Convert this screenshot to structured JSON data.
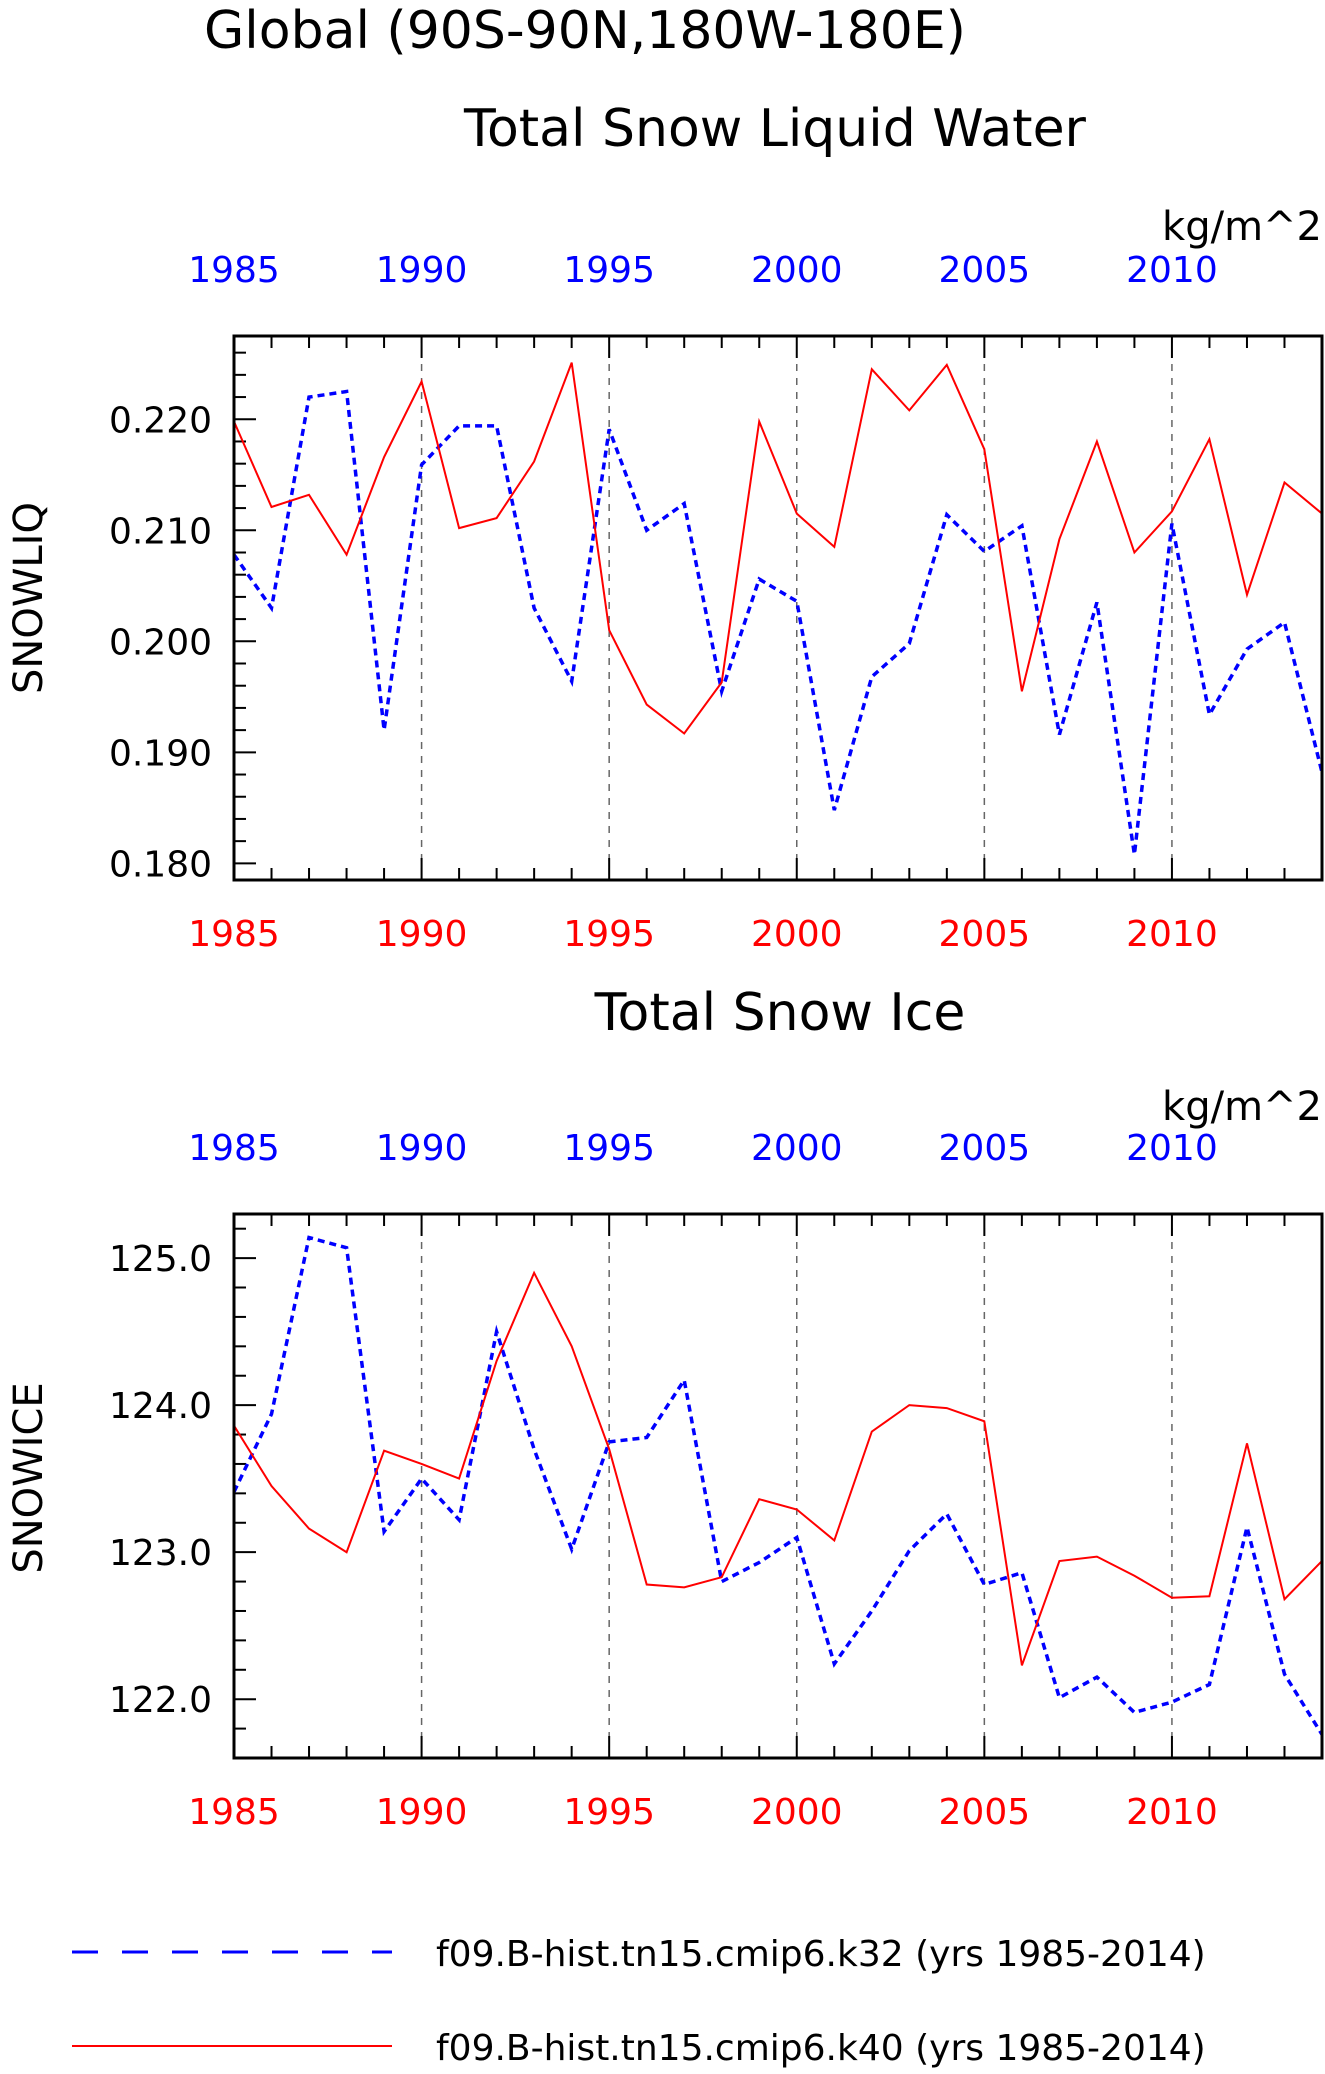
{
  "header": {
    "title_line1": "Global (90S-90N,180W-180E)"
  },
  "legend": {
    "items": [
      {
        "label": "f09.B-hist.tn15.cmip6.k32 (yrs 1985-2014)",
        "color": "#0000ff",
        "style": "dashed"
      },
      {
        "label": "f09.B-hist.tn15.cmip6.k40 (yrs 1985-2014)",
        "color": "#ff0000",
        "style": "solid"
      }
    ]
  },
  "chart_data": [
    {
      "type": "line",
      "title": "Total Snow Liquid Water",
      "units": "kg/m^2",
      "ylabel": "SNOWLIQ",
      "xlim": [
        1985,
        2014
      ],
      "ylim": [
        0.1785,
        0.2275
      ],
      "yticks": [
        "0.180",
        "0.190",
        "0.200",
        "0.210",
        "0.220"
      ],
      "ytick_values": [
        0.18,
        0.19,
        0.2,
        0.21,
        0.22
      ],
      "xticks": [
        "1985",
        "1990",
        "1995",
        "2000",
        "2005",
        "2010"
      ],
      "xtick_values": [
        1985,
        1990,
        1995,
        2000,
        2005,
        2010
      ],
      "top_axis_color": "#0000ff",
      "bottom_axis_color": "#ff0000",
      "grid": "vertical dashed at major x ticks",
      "x": [
        1985,
        1986,
        1987,
        1988,
        1989,
        1990,
        1991,
        1992,
        1993,
        1994,
        1995,
        1996,
        1997,
        1998,
        1999,
        2000,
        2001,
        2002,
        2003,
        2004,
        2005,
        2006,
        2007,
        2008,
        2009,
        2010,
        2011,
        2012,
        2013,
        2014
      ],
      "series": [
        {
          "name": "f09.B-hist.tn15.cmip6.k32 (yrs 1985-2014)",
          "color": "#0000ff",
          "style": "dashed",
          "values": [
            0.2078,
            0.203,
            0.222,
            0.2225,
            0.192,
            0.2159,
            0.2194,
            0.2194,
            0.203,
            0.1964,
            0.2191,
            0.21,
            0.2124,
            0.1955,
            0.2056,
            0.2036,
            0.1848,
            0.1968,
            0.1998,
            0.2114,
            0.2081,
            0.2104,
            0.1916,
            0.2035,
            0.1808,
            0.2106,
            0.1934,
            0.1993,
            0.2017,
            0.1882
          ]
        },
        {
          "name": "f09.B-hist.tn15.cmip6.k40 (yrs 1985-2014)",
          "color": "#ff0000",
          "style": "solid",
          "values": [
            0.2198,
            0.2121,
            0.2132,
            0.2078,
            0.2166,
            0.2234,
            0.2102,
            0.2111,
            0.2162,
            0.2251,
            0.201,
            0.1943,
            0.1917,
            0.1963,
            0.2198,
            0.2115,
            0.2085,
            0.2245,
            0.2208,
            0.2249,
            0.2173,
            0.1955,
            0.2092,
            0.218,
            0.208,
            0.2117,
            0.2182,
            0.2042,
            0.2143,
            0.2115
          ]
        }
      ]
    },
    {
      "type": "line",
      "title": "Total Snow Ice",
      "units": "kg/m^2",
      "ylabel": "SNOWICE",
      "xlim": [
        1985,
        2014
      ],
      "ylim": [
        121.6,
        125.3
      ],
      "yticks": [
        "122.0",
        "123.0",
        "124.0",
        "125.0"
      ],
      "ytick_values": [
        122,
        123,
        124,
        125
      ],
      "xticks": [
        "1985",
        "1990",
        "1995",
        "2000",
        "2005",
        "2010"
      ],
      "xtick_values": [
        1985,
        1990,
        1995,
        2000,
        2005,
        2010
      ],
      "top_axis_color": "#0000ff",
      "bottom_axis_color": "#ff0000",
      "grid": "vertical dashed at major x ticks",
      "x": [
        1985,
        1986,
        1987,
        1988,
        1989,
        1990,
        1991,
        1992,
        1993,
        1994,
        1995,
        1996,
        1997,
        1998,
        1999,
        2000,
        2001,
        2002,
        2003,
        2004,
        2005,
        2006,
        2007,
        2008,
        2009,
        2010,
        2011,
        2012,
        2013,
        2014
      ],
      "series": [
        {
          "name": "f09.B-hist.tn15.cmip6.k32 (yrs 1985-2014)",
          "color": "#0000ff",
          "style": "dashed",
          "values": [
            123.41,
            123.94,
            125.14,
            125.07,
            123.14,
            123.5,
            123.22,
            124.5,
            123.7,
            123.02,
            123.75,
            123.78,
            124.17,
            122.8,
            122.93,
            123.1,
            122.24,
            122.6,
            123.01,
            123.26,
            122.78,
            122.86,
            122.01,
            122.15,
            121.91,
            121.98,
            122.1,
            123.17,
            122.17,
            121.76
          ]
        },
        {
          "name": "f09.B-hist.tn15.cmip6.k40 (yrs 1985-2014)",
          "color": "#ff0000",
          "style": "solid",
          "values": [
            123.86,
            123.45,
            123.16,
            123.0,
            123.69,
            123.6,
            123.5,
            124.3,
            124.9,
            124.4,
            123.7,
            122.78,
            122.76,
            122.83,
            123.36,
            123.29,
            123.08,
            123.82,
            124.0,
            123.98,
            123.89,
            122.23,
            122.94,
            122.97,
            122.84,
            122.69,
            122.7,
            123.74,
            122.68,
            122.94
          ]
        }
      ]
    }
  ]
}
